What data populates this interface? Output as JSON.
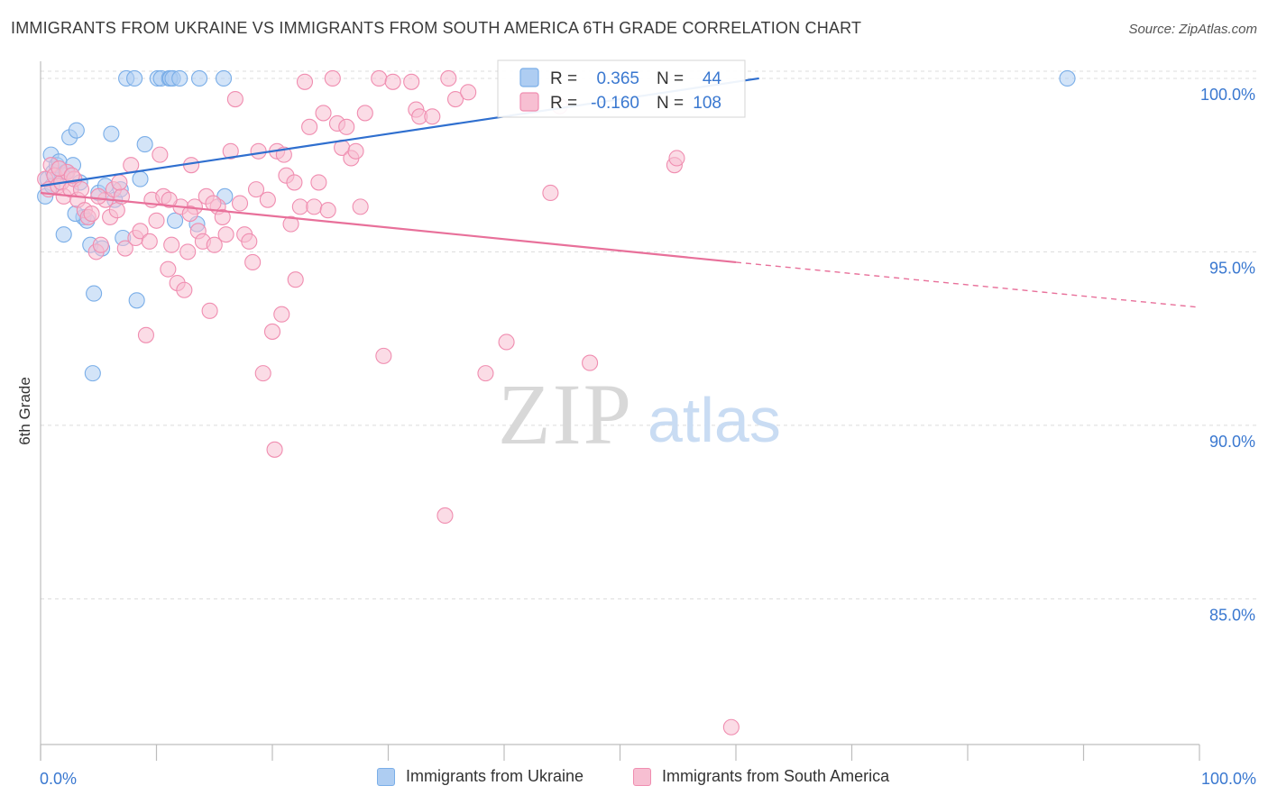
{
  "header": {
    "title": "IMMIGRANTS FROM UKRAINE VS IMMIGRANTS FROM SOUTH AMERICA 6TH GRADE CORRELATION CHART",
    "source": "Source: ZipAtlas.com"
  },
  "colors": {
    "blue": "#7aaee8",
    "blue_fill": "#aecdf2",
    "blue_line": "#2f6fcf",
    "pink": "#f08db0",
    "pink_fill": "#f7bfd2",
    "pink_line": "#e8709a",
    "axis_text": "#3a78d0"
  },
  "chart_data": {
    "type": "scatter",
    "title": "IMMIGRANTS FROM UKRAINE VS IMMIGRANTS FROM SOUTH AMERICA 6TH GRADE CORRELATION CHART",
    "xlabel": "",
    "ylabel": "6th Grade",
    "xlim": [
      0,
      100
    ],
    "ylim": [
      80.8,
      100.7
    ],
    "x_tick_labels": [
      "0.0%",
      "100.0%"
    ],
    "y_ticks": [
      85,
      90,
      95,
      100
    ],
    "y_tick_labels": [
      "85.0%",
      "90.0%",
      "95.0%",
      "100.0%"
    ],
    "watermark": {
      "zip": "ZIP",
      "atlas": "atlas"
    },
    "legend_box": [
      {
        "r_label": "R = ",
        "r_value": "0.365",
        "n_label": "N = ",
        "n_value": " 44"
      },
      {
        "r_label": "R = ",
        "r_value": "-0.160",
        "n_label": "N = ",
        "n_value": "108"
      }
    ],
    "series": [
      {
        "name": "Immigrants from Ukraine",
        "color": "blue",
        "trend": {
          "x0": 0,
          "y0": 96.9,
          "x1": 62,
          "y1": 100.0,
          "dash_to": null
        },
        "points": [
          [
            0.4,
            96.6
          ],
          [
            0.6,
            97.1
          ],
          [
            0.9,
            97.8
          ],
          [
            1.1,
            97.3
          ],
          [
            1.4,
            97.5
          ],
          [
            1.6,
            97.6
          ],
          [
            1.9,
            97.2
          ],
          [
            2.2,
            97.3
          ],
          [
            2.5,
            98.3
          ],
          [
            2.8,
            97.5
          ],
          [
            3.1,
            98.5
          ],
          [
            3.4,
            97.0
          ],
          [
            3.7,
            96.0
          ],
          [
            4.0,
            95.9
          ],
          [
            4.3,
            95.2
          ],
          [
            4.6,
            93.8
          ],
          [
            4.5,
            91.5
          ],
          [
            5.0,
            96.7
          ],
          [
            5.3,
            95.1
          ],
          [
            5.6,
            96.9
          ],
          [
            6.1,
            98.4
          ],
          [
            6.4,
            96.5
          ],
          [
            6.9,
            96.8
          ],
          [
            7.1,
            95.4
          ],
          [
            7.4,
            100.0
          ],
          [
            8.1,
            100.0
          ],
          [
            8.3,
            93.6
          ],
          [
            8.6,
            97.1
          ],
          [
            9.0,
            98.1
          ],
          [
            10.1,
            100.0
          ],
          [
            10.4,
            100.0
          ],
          [
            11.1,
            100.0
          ],
          [
            11.2,
            100.0
          ],
          [
            11.4,
            100.0
          ],
          [
            11.6,
            95.9
          ],
          [
            12.0,
            100.0
          ],
          [
            13.7,
            100.0
          ],
          [
            13.5,
            95.8
          ],
          [
            15.8,
            100.0
          ],
          [
            15.9,
            96.6
          ],
          [
            1.0,
            96.9
          ],
          [
            2.0,
            95.5
          ],
          [
            88.6,
            100.0
          ],
          [
            3.0,
            96.1
          ]
        ]
      },
      {
        "name": "Immigrants from South America",
        "color": "pink",
        "trend": {
          "x0": 0,
          "y0": 96.7,
          "x1": 60,
          "y1": 94.7,
          "dash_to": [
            100,
            93.4
          ]
        },
        "points": [
          [
            0.4,
            97.1
          ],
          [
            0.7,
            96.8
          ],
          [
            0.9,
            97.5
          ],
          [
            1.2,
            97.2
          ],
          [
            1.5,
            96.9
          ],
          [
            1.8,
            97.0
          ],
          [
            2.0,
            96.6
          ],
          [
            2.3,
            97.3
          ],
          [
            2.6,
            96.8
          ],
          [
            2.9,
            97.1
          ],
          [
            3.2,
            96.5
          ],
          [
            3.5,
            96.8
          ],
          [
            3.8,
            96.2
          ],
          [
            4.1,
            96.0
          ],
          [
            4.4,
            96.1
          ],
          [
            4.8,
            95.0
          ],
          [
            5.2,
            95.2
          ],
          [
            5.6,
            96.5
          ],
          [
            6.0,
            96.0
          ],
          [
            6.3,
            96.8
          ],
          [
            6.6,
            96.2
          ],
          [
            7.0,
            96.6
          ],
          [
            7.3,
            95.1
          ],
          [
            7.8,
            97.5
          ],
          [
            8.2,
            95.4
          ],
          [
            8.6,
            95.6
          ],
          [
            9.1,
            92.6
          ],
          [
            9.6,
            96.5
          ],
          [
            10.0,
            95.9
          ],
          [
            10.3,
            97.8
          ],
          [
            10.6,
            96.6
          ],
          [
            11.0,
            94.5
          ],
          [
            11.3,
            95.2
          ],
          [
            11.8,
            94.1
          ],
          [
            12.1,
            96.3
          ],
          [
            12.4,
            93.9
          ],
          [
            12.7,
            95.0
          ],
          [
            13.0,
            97.5
          ],
          [
            13.3,
            96.3
          ],
          [
            13.6,
            95.6
          ],
          [
            14.0,
            95.3
          ],
          [
            14.3,
            96.6
          ],
          [
            14.6,
            93.3
          ],
          [
            15.0,
            95.2
          ],
          [
            15.3,
            96.3
          ],
          [
            15.7,
            96.0
          ],
          [
            16.0,
            95.5
          ],
          [
            16.4,
            97.9
          ],
          [
            16.8,
            99.4
          ],
          [
            17.2,
            96.4
          ],
          [
            17.6,
            95.5
          ],
          [
            18.0,
            95.3
          ],
          [
            18.3,
            94.7
          ],
          [
            18.8,
            97.9
          ],
          [
            19.2,
            91.5
          ],
          [
            19.6,
            96.5
          ],
          [
            20.0,
            92.7
          ],
          [
            20.4,
            97.9
          ],
          [
            20.8,
            93.2
          ],
          [
            21.2,
            97.2
          ],
          [
            21.6,
            95.8
          ],
          [
            22.0,
            94.2
          ],
          [
            22.4,
            96.3
          ],
          [
            22.8,
            99.9
          ],
          [
            23.2,
            98.6
          ],
          [
            23.6,
            96.3
          ],
          [
            24.0,
            97.0
          ],
          [
            24.4,
            99.0
          ],
          [
            24.8,
            96.2
          ],
          [
            25.2,
            100.0
          ],
          [
            25.6,
            98.7
          ],
          [
            26.0,
            98.0
          ],
          [
            26.4,
            98.6
          ],
          [
            26.8,
            97.7
          ],
          [
            27.2,
            97.9
          ],
          [
            28.0,
            99.0
          ],
          [
            29.2,
            100.0
          ],
          [
            29.6,
            92.0
          ],
          [
            30.4,
            99.9
          ],
          [
            32.0,
            99.9
          ],
          [
            32.4,
            99.1
          ],
          [
            32.7,
            98.9
          ],
          [
            33.8,
            98.9
          ],
          [
            34.9,
            87.4
          ],
          [
            35.2,
            100.0
          ],
          [
            35.8,
            99.4
          ],
          [
            36.9,
            99.6
          ],
          [
            38.4,
            91.5
          ],
          [
            40.2,
            92.4
          ],
          [
            44.0,
            96.7
          ],
          [
            44.8,
            99.2
          ],
          [
            47.4,
            91.8
          ],
          [
            54.7,
            97.5
          ],
          [
            54.9,
            97.7
          ],
          [
            59.6,
            81.3
          ],
          [
            20.2,
            89.3
          ],
          [
            1.6,
            97.4
          ],
          [
            2.7,
            97.2
          ],
          [
            5.0,
            96.6
          ],
          [
            6.8,
            97.0
          ],
          [
            9.4,
            95.3
          ],
          [
            11.1,
            96.5
          ],
          [
            12.9,
            96.1
          ],
          [
            14.9,
            96.4
          ],
          [
            18.6,
            96.8
          ],
          [
            21.9,
            97.0
          ],
          [
            27.6,
            96.3
          ],
          [
            21.0,
            97.8
          ]
        ]
      }
    ]
  }
}
